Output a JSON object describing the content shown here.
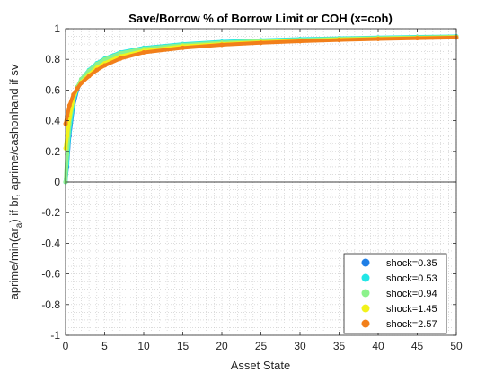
{
  "chart_data": {
    "type": "line",
    "title": "Save/Borrow % of Borrow Limit or COH (x=coh)",
    "xlabel": "Asset State",
    "ylabel": {
      "pre": "aprime/min(ar",
      "sub": "a",
      "post": ") if br, aprime/cashonhand if sv"
    },
    "xlim": [
      0,
      50
    ],
    "ylim": [
      -1,
      1
    ],
    "xticks": [
      0,
      5,
      10,
      15,
      20,
      25,
      30,
      35,
      40,
      45,
      50
    ],
    "xtick_labels": [
      "0",
      "5",
      "10",
      "15",
      "20",
      "25",
      "30",
      "35",
      "40",
      "45",
      "50"
    ],
    "yticks": [
      -1,
      -0.8,
      -0.6,
      -0.4,
      -0.2,
      0,
      0.2,
      0.4,
      0.6,
      0.8,
      1
    ],
    "ytick_labels": [
      "-1",
      "-0.8",
      "-0.6",
      "-0.4",
      "-0.2",
      "0",
      "0.2",
      "0.4",
      "0.6",
      "0.8",
      "1"
    ],
    "grid": "minor dotted",
    "reference_line_y": 0,
    "legend_position": "bottom-right",
    "series": [
      {
        "name": "shock=0.35",
        "color": "#1f7fe6",
        "x": [
          0,
          0.2,
          0.5,
          1,
          1.5,
          2,
          3,
          4,
          5,
          7,
          10,
          15,
          20,
          25,
          30,
          35,
          40,
          45,
          50
        ],
        "y": [
          0,
          0.1,
          0.3,
          0.5,
          0.6,
          0.66,
          0.72,
          0.77,
          0.8,
          0.84,
          0.87,
          0.895,
          0.91,
          0.92,
          0.93,
          0.935,
          0.94,
          0.945,
          0.948
        ]
      },
      {
        "name": "shock=0.53",
        "color": "#22e6e6",
        "x": [
          0,
          0.2,
          0.5,
          1,
          1.5,
          2,
          3,
          4,
          5,
          7,
          10,
          15,
          20,
          25,
          30,
          35,
          40,
          45,
          50
        ],
        "y": [
          0,
          0.12,
          0.33,
          0.52,
          0.61,
          0.67,
          0.73,
          0.775,
          0.805,
          0.845,
          0.875,
          0.9,
          0.915,
          0.925,
          0.933,
          0.938,
          0.943,
          0.947,
          0.95
        ]
      },
      {
        "name": "shock=0.94",
        "color": "#8cf28c",
        "x": [
          0,
          0.2,
          0.5,
          1,
          1.5,
          2,
          3,
          4,
          5,
          7,
          10,
          15,
          20,
          25,
          30,
          35,
          40,
          45,
          50
        ],
        "y": [
          0,
          0.18,
          0.38,
          0.54,
          0.62,
          0.67,
          0.725,
          0.77,
          0.8,
          0.84,
          0.87,
          0.895,
          0.91,
          0.92,
          0.928,
          0.935,
          0.94,
          0.944,
          0.947
        ]
      },
      {
        "name": "shock=1.45",
        "color": "#f2f21a",
        "x": [
          0,
          0.2,
          0.5,
          1,
          1.5,
          2,
          3,
          4,
          5,
          7,
          10,
          15,
          20,
          25,
          30,
          35,
          40,
          45,
          50
        ],
        "y": [
          0.22,
          0.3,
          0.42,
          0.55,
          0.61,
          0.65,
          0.7,
          0.745,
          0.775,
          0.82,
          0.855,
          0.885,
          0.9,
          0.912,
          0.922,
          0.93,
          0.936,
          0.941,
          0.945
        ]
      },
      {
        "name": "shock=2.57",
        "color": "#f27f1a",
        "x": [
          0,
          0.2,
          0.5,
          1,
          1.5,
          2,
          3,
          4,
          5,
          7,
          10,
          15,
          20,
          25,
          30,
          35,
          40,
          45,
          50
        ],
        "y": [
          0.38,
          0.43,
          0.5,
          0.57,
          0.61,
          0.645,
          0.69,
          0.73,
          0.76,
          0.805,
          0.845,
          0.875,
          0.895,
          0.908,
          0.918,
          0.926,
          0.933,
          0.938,
          0.942
        ]
      }
    ]
  }
}
